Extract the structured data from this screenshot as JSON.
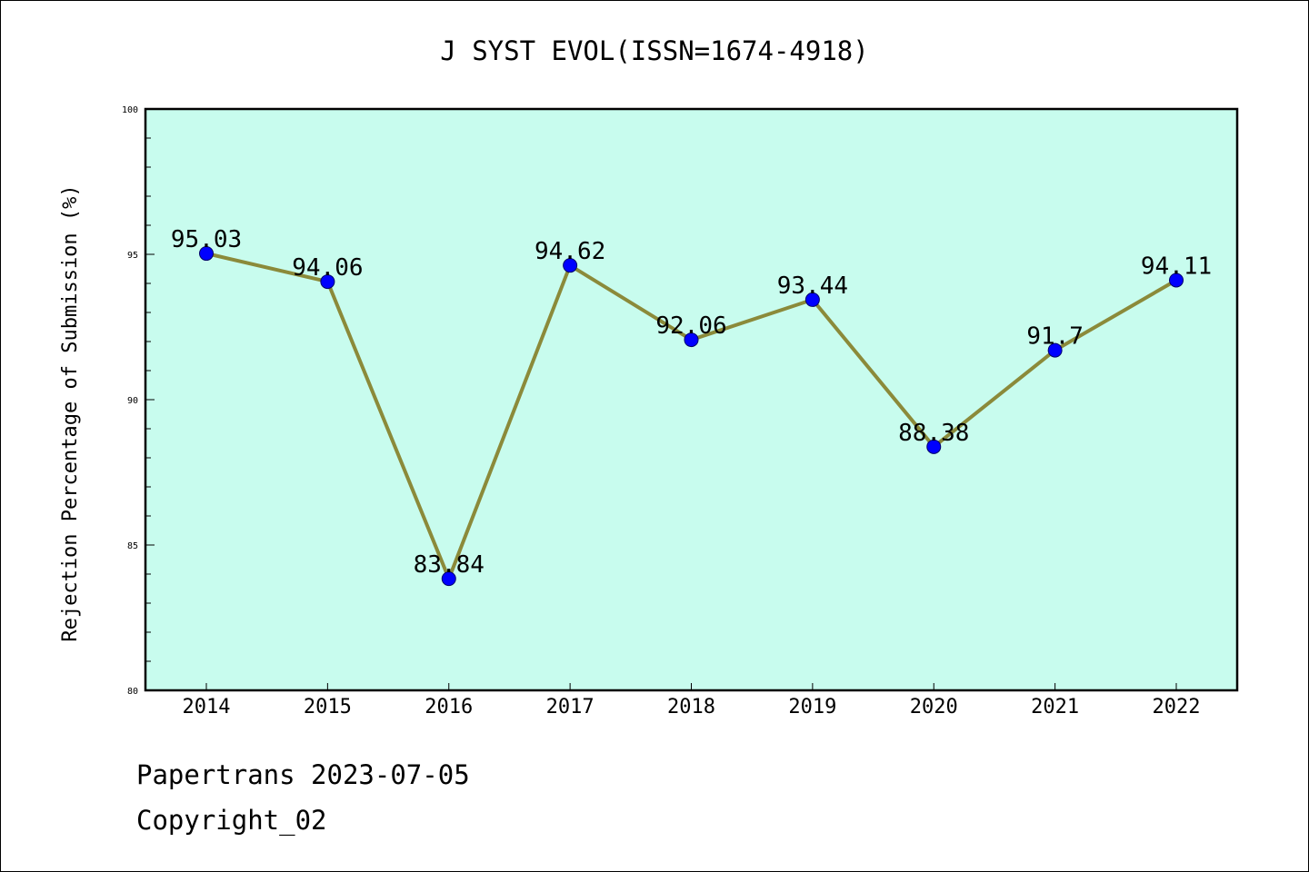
{
  "chart_data": {
    "type": "line",
    "title": "J SYST EVOL(ISSN=1674-4918)",
    "xlabel": "",
    "ylabel": "Rejection Percentage of Submission (%)",
    "categories": [
      "2014",
      "2015",
      "2016",
      "2017",
      "2018",
      "2019",
      "2020",
      "2021",
      "2022"
    ],
    "values": [
      95.03,
      94.06,
      83.84,
      94.62,
      92.06,
      93.44,
      88.38,
      91.7,
      94.11
    ],
    "value_labels": [
      "95.03",
      "94.06",
      "83.84",
      "94.62",
      "92.06",
      "93.44",
      "88.38",
      "91.7",
      "94.11"
    ],
    "ylim": [
      80,
      100
    ],
    "yticks": [
      80,
      85,
      90,
      95,
      100
    ],
    "grid": false,
    "legend": "none",
    "colors": {
      "plot_background": "#c8fcee",
      "line": "#8b8a3a",
      "marker": "#0000ff"
    }
  },
  "footer": {
    "line1": "Papertrans 2023-07-05",
    "line2": "Copyright_02"
  }
}
